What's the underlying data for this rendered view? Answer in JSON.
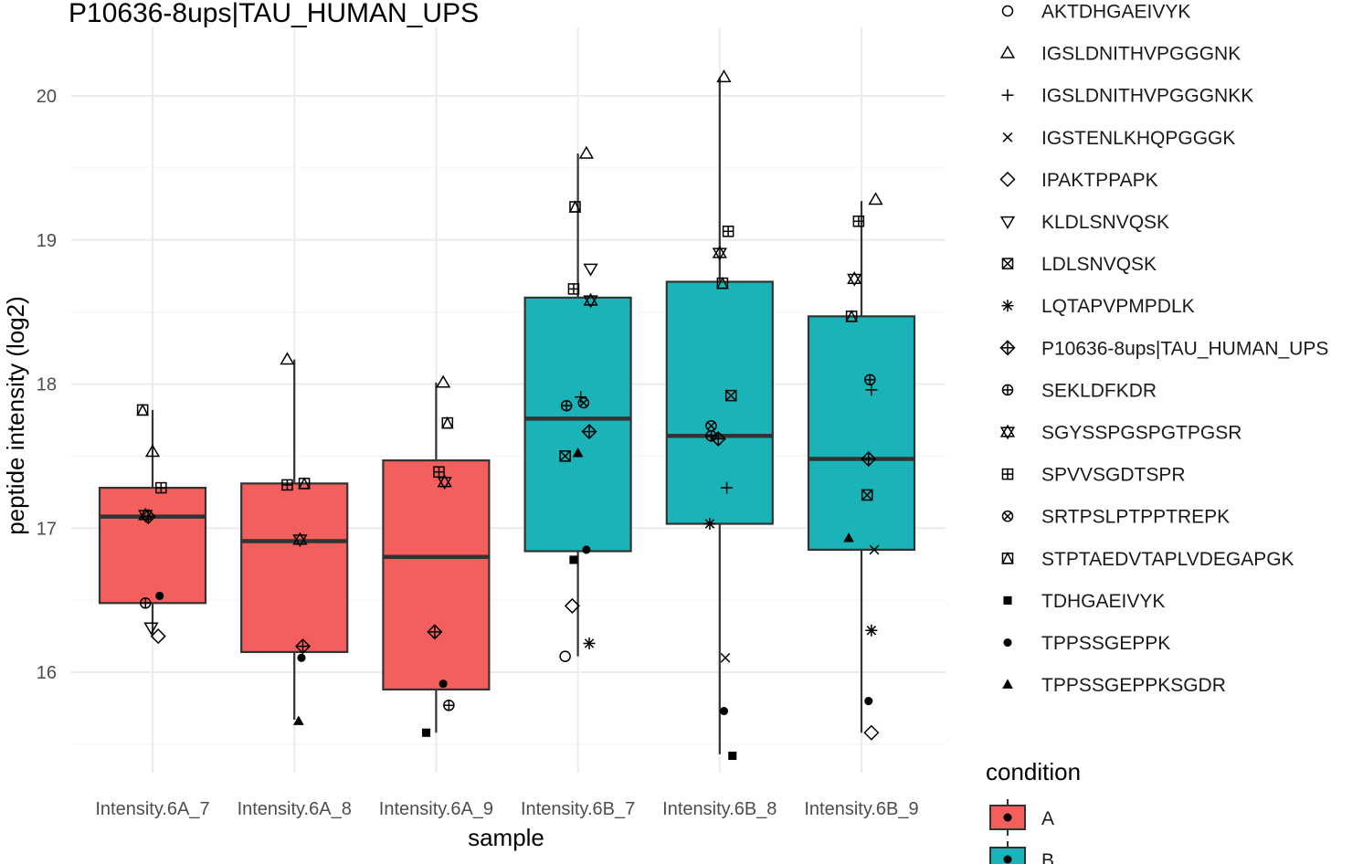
{
  "chart_data": {
    "type": "box",
    "title": "P10636-8ups|TAU_HUMAN_UPS",
    "xlabel": "sample",
    "ylabel": "peptide intensity (log2)",
    "y_ticks": [
      16,
      17,
      18,
      19,
      20
    ],
    "y_range": [
      15.45,
      20.45
    ],
    "grid": true,
    "categories": [
      "Intensity.6A_7",
      "Intensity.6A_8",
      "Intensity.6A_9",
      "Intensity.6B_7",
      "Intensity.6B_8",
      "Intensity.6B_9"
    ],
    "condition_colors": {
      "A": "#F25F5C",
      "B": "#1AB3B8"
    },
    "boxes": [
      {
        "sample": "Intensity.6A_7",
        "condition": "A",
        "whisker_low": 16.25,
        "q1": 16.48,
        "median": 17.08,
        "q3": 17.28,
        "whisker_high": 17.82
      },
      {
        "sample": "Intensity.6A_8",
        "condition": "A",
        "whisker_low": 15.67,
        "q1": 16.14,
        "median": 16.91,
        "q3": 17.31,
        "whisker_high": 18.17
      },
      {
        "sample": "Intensity.6A_9",
        "condition": "A",
        "whisker_low": 15.58,
        "q1": 15.88,
        "median": 16.8,
        "q3": 17.47,
        "whisker_high": 18.01
      },
      {
        "sample": "Intensity.6B_7",
        "condition": "B",
        "whisker_low": 16.11,
        "q1": 16.84,
        "median": 17.76,
        "q3": 18.6,
        "whisker_high": 19.6
      },
      {
        "sample": "Intensity.6B_8",
        "condition": "B",
        "whisker_low": 15.43,
        "q1": 17.03,
        "median": 17.64,
        "q3": 18.71,
        "whisker_high": 20.13
      },
      {
        "sample": "Intensity.6B_9",
        "condition": "B",
        "whisker_low": 15.58,
        "q1": 16.85,
        "median": 17.48,
        "q3": 18.47,
        "whisker_high": 19.27
      }
    ],
    "points": [
      {
        "sample": "Intensity.6A_7",
        "dx": -0.07,
        "y": 17.82,
        "peptide": "STPTAEDVTAPLVDEGAPGK"
      },
      {
        "sample": "Intensity.6A_7",
        "dx": 0.0,
        "y": 17.53,
        "peptide": "IGSLDNITHVPGGGNK"
      },
      {
        "sample": "Intensity.6A_7",
        "dx": 0.06,
        "y": 17.28,
        "peptide": "SPVVSGDTSPR"
      },
      {
        "sample": "Intensity.6A_7",
        "dx": -0.05,
        "y": 17.09,
        "peptide": "SGYSSPGSPGTPGSR"
      },
      {
        "sample": "Intensity.6A_7",
        "dx": -0.03,
        "y": 17.08,
        "peptide": "P10636-8ups|TAU_HUMAN_UPS"
      },
      {
        "sample": "Intensity.6A_7",
        "dx": 0.05,
        "y": 16.53,
        "peptide": "TPPSSGEPPK"
      },
      {
        "sample": "Intensity.6A_7",
        "dx": -0.05,
        "y": 16.48,
        "peptide": "SEKLDFKDR"
      },
      {
        "sample": "Intensity.6A_7",
        "dx": -0.01,
        "y": 16.31,
        "peptide": "KLDLSNVQSK"
      },
      {
        "sample": "Intensity.6A_7",
        "dx": 0.04,
        "y": 16.25,
        "peptide": "IPAKTPPAPK"
      },
      {
        "sample": "Intensity.6A_8",
        "dx": -0.05,
        "y": 18.17,
        "peptide": "IGSLDNITHVPGGGNK"
      },
      {
        "sample": "Intensity.6A_8",
        "dx": 0.07,
        "y": 17.31,
        "peptide": "STPTAEDVTAPLVDEGAPGK"
      },
      {
        "sample": "Intensity.6A_8",
        "dx": -0.05,
        "y": 17.3,
        "peptide": "SPVVSGDTSPR"
      },
      {
        "sample": "Intensity.6A_8",
        "dx": 0.04,
        "y": 16.92,
        "peptide": "SGYSSPGSPGTPGSR"
      },
      {
        "sample": "Intensity.6A_8",
        "dx": 0.06,
        "y": 16.18,
        "peptide": "P10636-8ups|TAU_HUMAN_UPS"
      },
      {
        "sample": "Intensity.6A_8",
        "dx": 0.05,
        "y": 16.1,
        "peptide": "TPPSSGEPPK"
      },
      {
        "sample": "Intensity.6A_8",
        "dx": 0.03,
        "y": 15.66,
        "peptide": "TPPSSGEPPKSGDR"
      },
      {
        "sample": "Intensity.6A_9",
        "dx": 0.05,
        "y": 18.01,
        "peptide": "IGSLDNITHVPGGGNK"
      },
      {
        "sample": "Intensity.6A_9",
        "dx": 0.08,
        "y": 17.73,
        "peptide": "STPTAEDVTAPLVDEGAPGK"
      },
      {
        "sample": "Intensity.6A_9",
        "dx": 0.02,
        "y": 17.39,
        "peptide": "SPVVSGDTSPR"
      },
      {
        "sample": "Intensity.6A_9",
        "dx": 0.06,
        "y": 17.32,
        "peptide": "SGYSSPGSPGTPGSR"
      },
      {
        "sample": "Intensity.6A_9",
        "dx": -0.01,
        "y": 16.28,
        "peptide": "P10636-8ups|TAU_HUMAN_UPS"
      },
      {
        "sample": "Intensity.6A_9",
        "dx": 0.05,
        "y": 15.92,
        "peptide": "TPPSSGEPPK"
      },
      {
        "sample": "Intensity.6A_9",
        "dx": 0.09,
        "y": 15.77,
        "peptide": "SEKLDFKDR"
      },
      {
        "sample": "Intensity.6A_9",
        "dx": -0.07,
        "y": 15.58,
        "peptide": "TDHGAEIVYK"
      },
      {
        "sample": "Intensity.6B_7",
        "dx": 0.06,
        "y": 19.6,
        "peptide": "IGSLDNITHVPGGGNK"
      },
      {
        "sample": "Intensity.6B_7",
        "dx": -0.02,
        "y": 19.23,
        "peptide": "STPTAEDVTAPLVDEGAPGK"
      },
      {
        "sample": "Intensity.6B_7",
        "dx": 0.09,
        "y": 18.8,
        "peptide": "KLDLSNVQSK"
      },
      {
        "sample": "Intensity.6B_7",
        "dx": -0.03,
        "y": 18.66,
        "peptide": "SPVVSGDTSPR"
      },
      {
        "sample": "Intensity.6B_7",
        "dx": 0.09,
        "y": 18.58,
        "peptide": "SGYSSPGSPGTPGSR"
      },
      {
        "sample": "Intensity.6B_7",
        "dx": 0.02,
        "y": 17.91,
        "peptide": "IGSLDNITHVPGGGNKK"
      },
      {
        "sample": "Intensity.6B_7",
        "dx": 0.04,
        "y": 17.87,
        "peptide": "SRTPSLPTPPTREPK"
      },
      {
        "sample": "Intensity.6B_7",
        "dx": -0.08,
        "y": 17.85,
        "peptide": "SEKLDFKDR"
      },
      {
        "sample": "Intensity.6B_7",
        "dx": 0.08,
        "y": 17.67,
        "peptide": "P10636-8ups|TAU_HUMAN_UPS"
      },
      {
        "sample": "Intensity.6B_7",
        "dx": 0.0,
        "y": 17.52,
        "peptide": "TPPSSGEPPKSGDR"
      },
      {
        "sample": "Intensity.6B_7",
        "dx": -0.09,
        "y": 17.5,
        "peptide": "LDLSNVQSK"
      },
      {
        "sample": "Intensity.6B_7",
        "dx": 0.06,
        "y": 16.85,
        "peptide": "TPPSSGEPPK"
      },
      {
        "sample": "Intensity.6B_7",
        "dx": -0.03,
        "y": 16.78,
        "peptide": "TDHGAEIVYK"
      },
      {
        "sample": "Intensity.6B_7",
        "dx": -0.04,
        "y": 16.46,
        "peptide": "IPAKTPPAPK"
      },
      {
        "sample": "Intensity.6B_7",
        "dx": 0.08,
        "y": 16.2,
        "peptide": "LQTAPVPMPDLK"
      },
      {
        "sample": "Intensity.6B_7",
        "dx": -0.09,
        "y": 16.11,
        "peptide": "AKTDHGAEIVYK"
      },
      {
        "sample": "Intensity.6B_8",
        "dx": 0.03,
        "y": 20.13,
        "peptide": "IGSLDNITHVPGGGNK"
      },
      {
        "sample": "Intensity.6B_8",
        "dx": 0.06,
        "y": 19.06,
        "peptide": "SPVVSGDTSPR"
      },
      {
        "sample": "Intensity.6B_8",
        "dx": 0.0,
        "y": 18.91,
        "peptide": "SGYSSPGSPGTPGSR"
      },
      {
        "sample": "Intensity.6B_8",
        "dx": 0.02,
        "y": 18.7,
        "peptide": "STPTAEDVTAPLVDEGAPGK"
      },
      {
        "sample": "Intensity.6B_8",
        "dx": 0.08,
        "y": 17.92,
        "peptide": "LDLSNVQSK"
      },
      {
        "sample": "Intensity.6B_8",
        "dx": -0.06,
        "y": 17.71,
        "peptide": "SRTPSLPTPPTREPK"
      },
      {
        "sample": "Intensity.6B_8",
        "dx": -0.06,
        "y": 17.64,
        "peptide": "SEKLDFKDR"
      },
      {
        "sample": "Intensity.6B_8",
        "dx": -0.01,
        "y": 17.62,
        "peptide": "P10636-8ups|TAU_HUMAN_UPS"
      },
      {
        "sample": "Intensity.6B_8",
        "dx": 0.05,
        "y": 17.28,
        "peptide": "IGSLDNITHVPGGGNKK"
      },
      {
        "sample": "Intensity.6B_8",
        "dx": -0.07,
        "y": 17.03,
        "peptide": "LQTAPVPMPDLK"
      },
      {
        "sample": "Intensity.6B_8",
        "dx": 0.04,
        "y": 16.1,
        "peptide": "IGSTENLKHQPGGGK"
      },
      {
        "sample": "Intensity.6B_8",
        "dx": 0.03,
        "y": 15.73,
        "peptide": "TPPSSGEPPK"
      },
      {
        "sample": "Intensity.6B_8",
        "dx": 0.09,
        "y": 15.42,
        "peptide": "TDHGAEIVYK"
      },
      {
        "sample": "Intensity.6B_9",
        "dx": 0.1,
        "y": 19.28,
        "peptide": "IGSLDNITHVPGGGNK"
      },
      {
        "sample": "Intensity.6B_9",
        "dx": -0.02,
        "y": 19.13,
        "peptide": "SPVVSGDTSPR"
      },
      {
        "sample": "Intensity.6B_9",
        "dx": -0.05,
        "y": 18.73,
        "peptide": "SGYSSPGSPGTPGSR"
      },
      {
        "sample": "Intensity.6B_9",
        "dx": -0.07,
        "y": 18.47,
        "peptide": "STPTAEDVTAPLVDEGAPGK"
      },
      {
        "sample": "Intensity.6B_9",
        "dx": 0.06,
        "y": 18.03,
        "peptide": "SEKLDFKDR"
      },
      {
        "sample": "Intensity.6B_9",
        "dx": 0.07,
        "y": 17.96,
        "peptide": "IGSLDNITHVPGGGNKK"
      },
      {
        "sample": "Intensity.6B_9",
        "dx": 0.05,
        "y": 17.48,
        "peptide": "P10636-8ups|TAU_HUMAN_UPS"
      },
      {
        "sample": "Intensity.6B_9",
        "dx": 0.04,
        "y": 17.23,
        "peptide": "LDLSNVQSK"
      },
      {
        "sample": "Intensity.6B_9",
        "dx": -0.09,
        "y": 16.93,
        "peptide": "TPPSSGEPPKSGDR"
      },
      {
        "sample": "Intensity.6B_9",
        "dx": 0.09,
        "y": 16.85,
        "peptide": "IGSTENLKHQPGGGK"
      },
      {
        "sample": "Intensity.6B_9",
        "dx": 0.07,
        "y": 16.29,
        "peptide": "LQTAPVPMPDLK"
      },
      {
        "sample": "Intensity.6B_9",
        "dx": 0.05,
        "y": 15.8,
        "peptide": "TPPSSGEPPK"
      },
      {
        "sample": "Intensity.6B_9",
        "dx": 0.07,
        "y": 15.58,
        "peptide": "IPAKTPPAPK"
      }
    ],
    "legend_shape": {
      "placement": "right",
      "entries": [
        {
          "label": "AKTDHGAEIVYK",
          "shape": "circle-open"
        },
        {
          "label": "IGSLDNITHVPGGGNK",
          "shape": "triangle-open"
        },
        {
          "label": "IGSLDNITHVPGGGNKK",
          "shape": "plus"
        },
        {
          "label": "IGSTENLKHQPGGGK",
          "shape": "cross"
        },
        {
          "label": "IPAKTPPAPK",
          "shape": "diamond-open"
        },
        {
          "label": "KLDLSNVQSK",
          "shape": "triangle-down-open"
        },
        {
          "label": "LDLSNVQSK",
          "shape": "square-cross"
        },
        {
          "label": "LQTAPVPMPDLK",
          "shape": "asterisk"
        },
        {
          "label": "P10636-8ups|TAU_HUMAN_UPS",
          "shape": "diamond-plus"
        },
        {
          "label": "SEKLDFKDR",
          "shape": "circle-plus"
        },
        {
          "label": "SGYSSPGSPGTPGSR",
          "shape": "star-of-david"
        },
        {
          "label": "SPVVSGDTSPR",
          "shape": "square-plus"
        },
        {
          "label": "SRTPSLPTPPTREPK",
          "shape": "circle-cross"
        },
        {
          "label": "STPTAEDVTAPLVDEGAPGK",
          "shape": "square-triangle"
        },
        {
          "label": "TDHGAEIVYK",
          "shape": "square-filled"
        },
        {
          "label": "TPPSSGEPPK",
          "shape": "circle-filled"
        },
        {
          "label": "TPPSSGEPPKSGDR",
          "shape": "triangle-filled"
        }
      ]
    },
    "legend_fill": {
      "title": "condition",
      "entries": [
        {
          "label": "A",
          "color": "#F25F5C"
        },
        {
          "label": "B",
          "color": "#1AB3B8"
        }
      ]
    }
  }
}
